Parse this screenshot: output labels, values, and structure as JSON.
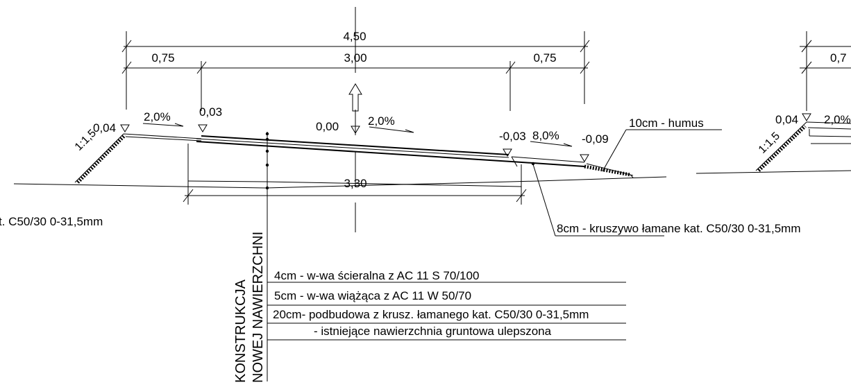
{
  "dimensions": {
    "total_width": "4,50",
    "left_shoulder": "0,75",
    "carriageway": "3,00",
    "right_shoulder": "0,75",
    "base_width": "3,30",
    "right_partial_shoulder": "0,7"
  },
  "levels": {
    "left_edge": "0,04",
    "left_crown": "0,03",
    "axis": "0,00",
    "right_edge": "-0,03",
    "right_slope_toe": "-0,09",
    "partial_left_edge": "0,04"
  },
  "slopes": {
    "left_shoulder": "2,0%",
    "carriageway": "2,0%",
    "right_shoulder": "8,0%",
    "partial_shoulder": "2,0%"
  },
  "embankment_ratio": "1:1,5",
  "embankment_ratio_partial": "1:1,5",
  "labels": {
    "humus": "10cm - humus",
    "aggregate_shoulder_lead": "8cm -  kruszywo łamane",
    "aggregate_shoulder_rest": " kat. C50/30 0-31,5mm",
    "left_cutoff": "t. C50/30 0-31,5mm"
  },
  "construction": {
    "title_line1": "KONSTRUKCJA",
    "title_line2": "NOWEJ NAWIERZCHNI",
    "layers": [
      "4cm -  w-wa ścieralna z  AC 11 S 70/100",
      "5cm -  w-wa wiążąca z  AC 11 W 50/70",
      "20cm- podbudowa z  krusz. łamanego kat. C50/30 0-31,5mm",
      "- istniejące nawierzchnia gruntowa ulepszona"
    ]
  }
}
